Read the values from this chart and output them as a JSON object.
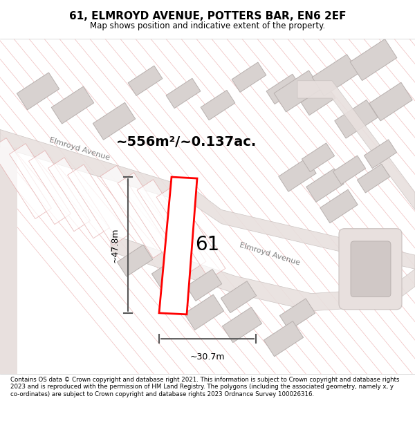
{
  "title": "61, ELMROYD AVENUE, POTTERS BAR, EN6 2EF",
  "subtitle": "Map shows position and indicative extent of the property.",
  "footer": "Contains OS data © Crown copyright and database right 2021. This information is subject to Crown copyright and database rights 2023 and is reproduced with the permission of HM Land Registry. The polygons (including the associated geometry, namely x, y co-ordinates) are subject to Crown copyright and database rights 2023 Ordnance Survey 100026316.",
  "area_label": "~556m²/~0.137ac.",
  "label_61": "61",
  "dim_height": "~47.8m",
  "dim_width": "~30.7m",
  "road_label1": "Elmroyd Avenue",
  "road_label2": "Elmroyd Avenue",
  "bg_color": "#f5f0f0",
  "map_bg": "#f5f0ee",
  "plot_color": "#ff0000",
  "road_color": "#d0c8c8",
  "building_fill": "#d8d0d0",
  "building_edge": "#b0a8a8",
  "hatching_color": "#e8a0a0",
  "dim_color": "#555555",
  "figsize": [
    6.0,
    6.25
  ],
  "dpi": 100
}
